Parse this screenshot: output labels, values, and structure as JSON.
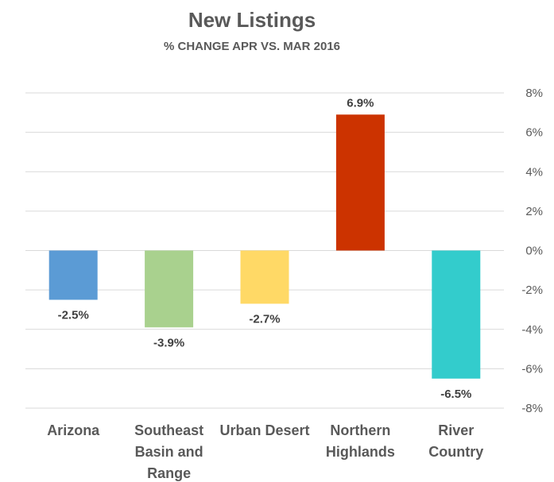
{
  "chart_data": {
    "type": "bar",
    "title": "New Listings",
    "subtitle": "% CHANGE APR VS. MAR 2016",
    "categories": [
      "Arizona",
      "Southeast Basin and Range",
      "Urban Desert",
      "Northern Highlands",
      "River Country"
    ],
    "category_lines": [
      [
        "Arizona"
      ],
      [
        "Southeast",
        "Basin and",
        "Range"
      ],
      [
        "Urban Desert"
      ],
      [
        "Northern",
        "Highlands"
      ],
      [
        "River",
        "Country"
      ]
    ],
    "values": [
      -2.5,
      -3.9,
      -2.7,
      6.9,
      -6.5
    ],
    "data_labels": [
      "-2.5%",
      "-3.9%",
      "-2.7%",
      "6.9%",
      "-6.5%"
    ],
    "colors": [
      "#5b9bd5",
      "#a9d18e",
      "#ffd966",
      "#cc3300",
      "#33cccc"
    ],
    "ylim": [
      -8,
      8
    ],
    "yticks": [
      8,
      6,
      4,
      2,
      0,
      -2,
      -4,
      -6,
      -8
    ],
    "ytick_labels": [
      "8%",
      "6%",
      "4%",
      "2%",
      "0%",
      "-2%",
      "-4%",
      "-6%",
      "-8%"
    ],
    "axis_position": "right",
    "grid": true,
    "xlabel": "",
    "ylabel": ""
  }
}
